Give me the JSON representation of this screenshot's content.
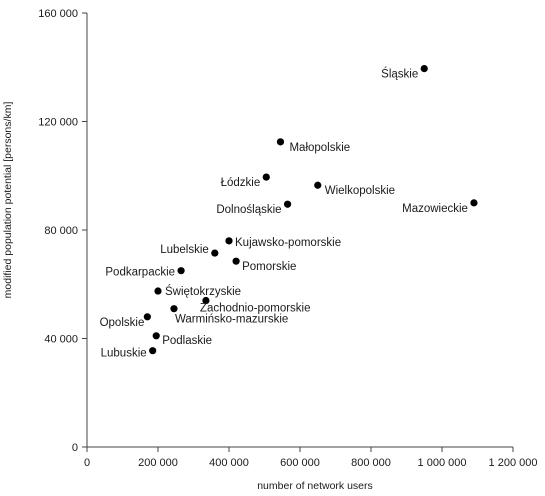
{
  "chart_data": {
    "type": "scatter",
    "title": "",
    "xlabel": "number of network users",
    "ylabel": "modified population potential [persons/km]",
    "xlim": [
      0,
      1200000
    ],
    "ylim": [
      0,
      160000
    ],
    "x_ticks": [
      0,
      200000,
      400000,
      600000,
      800000,
      1000000,
      1200000
    ],
    "x_tick_labels": [
      "0",
      "200 000",
      "400 000",
      "600 000",
      "800 000",
      "1 000 000",
      "1 200 000"
    ],
    "y_ticks": [
      0,
      40000,
      80000,
      120000,
      160000
    ],
    "y_tick_labels": [
      "0",
      "40 000",
      "80 000",
      "120 000",
      "160 000"
    ],
    "grid": false,
    "legend": "none",
    "marker_color": "#000000",
    "points": [
      {
        "label": "Śląskie",
        "x": 950000,
        "y": 139500
      },
      {
        "label": "Małopolskie",
        "x": 545000,
        "y": 112500
      },
      {
        "label": "Łódzkie",
        "x": 505000,
        "y": 99500
      },
      {
        "label": "Wielkopolskie",
        "x": 650000,
        "y": 96500
      },
      {
        "label": "Dolnośląskie",
        "x": 565000,
        "y": 89500
      },
      {
        "label": "Mazowieckie",
        "x": 1090000,
        "y": 90000
      },
      {
        "label": "Kujawsko-pomorskie",
        "x": 400000,
        "y": 76000
      },
      {
        "label": "Lubelskie",
        "x": 360000,
        "y": 71500
      },
      {
        "label": "Pomorskie",
        "x": 420000,
        "y": 68500
      },
      {
        "label": "Podkarpackie",
        "x": 265000,
        "y": 65000
      },
      {
        "label": "Świętokrzyskie",
        "x": 200000,
        "y": 57500
      },
      {
        "label": "Zachodnio-pomorskie",
        "x": 335000,
        "y": 54000
      },
      {
        "label": "Warmińsko-mazurskie",
        "x": 245000,
        "y": 51000
      },
      {
        "label": "Opolskie",
        "x": 170000,
        "y": 48000
      },
      {
        "label": "Podlaskie",
        "x": 195000,
        "y": 41000
      },
      {
        "label": "Lubuskie",
        "x": 185000,
        "y": 35500
      }
    ]
  }
}
